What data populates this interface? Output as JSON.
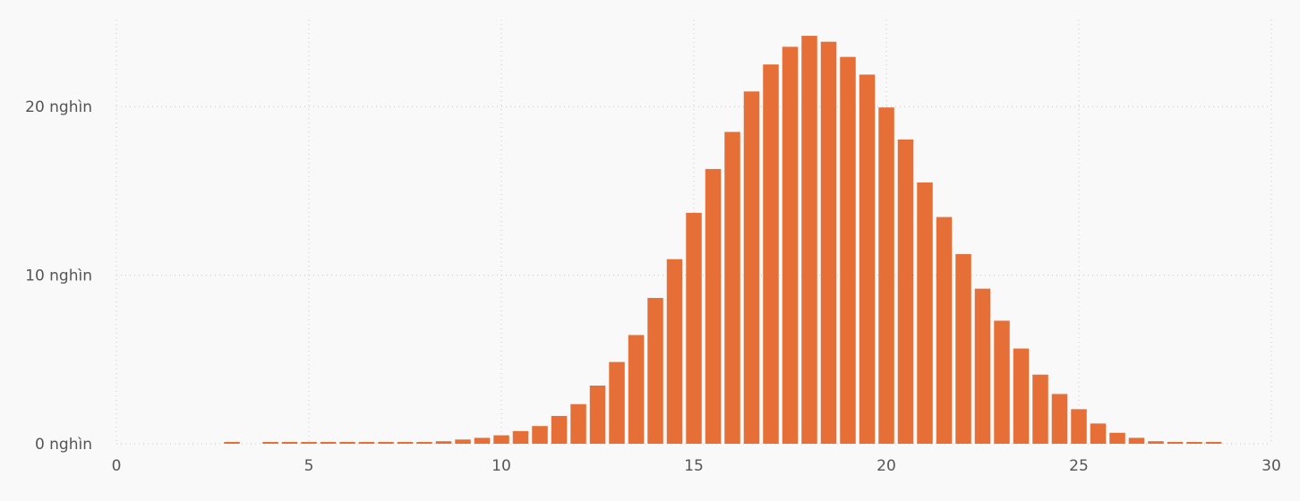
{
  "chart_data": {
    "type": "bar",
    "title": "",
    "xlabel": "",
    "ylabel": "",
    "xlim": [
      0,
      30
    ],
    "ylim": [
      0,
      25000
    ],
    "grid": true,
    "legend": "none",
    "bar_color": "#e56f36",
    "background": "#f9f9f9",
    "bin_width": 0.5,
    "x_ticks": [
      {
        "value": 0,
        "label": "0"
      },
      {
        "value": 5,
        "label": "5"
      },
      {
        "value": 10,
        "label": "10"
      },
      {
        "value": 15,
        "label": "15"
      },
      {
        "value": 20,
        "label": "20"
      },
      {
        "value": 25,
        "label": "25"
      },
      {
        "value": 30,
        "label": "30"
      }
    ],
    "y_ticks": [
      {
        "value": 0,
        "label": "0 nghìn"
      },
      {
        "value": 10000,
        "label": "10 nghìn"
      },
      {
        "value": 20000,
        "label": "20 nghìn"
      }
    ],
    "x": [
      3,
      4,
      4.5,
      5,
      5.5,
      6,
      6.5,
      7,
      7.5,
      8,
      8.5,
      9,
      9.5,
      10,
      10.5,
      11,
      11.5,
      12,
      12.5,
      13,
      13.5,
      14,
      14.5,
      15,
      15.5,
      16,
      16.5,
      17,
      17.5,
      18,
      18.5,
      19,
      19.5,
      20,
      20.5,
      21,
      21.5,
      22,
      22.5,
      23,
      23.5,
      24,
      24.5,
      25,
      25.5,
      26,
      26.5,
      27,
      27.5,
      28,
      28.5
    ],
    "values": [
      100,
      100,
      100,
      100,
      100,
      100,
      100,
      100,
      100,
      100,
      150,
      250,
      350,
      500,
      750,
      1050,
      1650,
      2350,
      3450,
      4850,
      6450,
      8650,
      10950,
      13700,
      16300,
      18500,
      20900,
      22500,
      23550,
      24200,
      23850,
      22950,
      21900,
      19950,
      18050,
      15500,
      13450,
      11250,
      9200,
      7300,
      5650,
      4100,
      2950,
      2050,
      1200,
      650,
      350,
      150,
      100,
      100,
      100
    ]
  }
}
